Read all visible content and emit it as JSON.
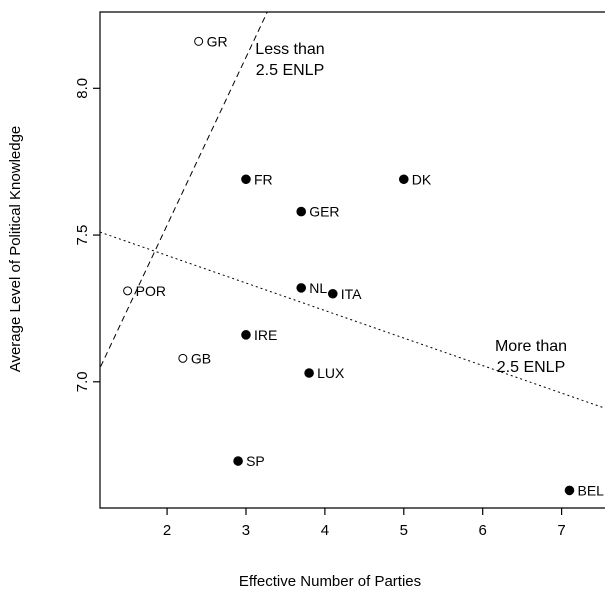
{
  "chart_data": {
    "type": "scatter",
    "title": "",
    "xlabel": "Effective Number of Parties",
    "ylabel": "Average Level of Political Knowledge",
    "xlim": [
      1.15,
      7.55
    ],
    "ylim": [
      6.57,
      8.26
    ],
    "x_ticks": [
      2,
      3,
      4,
      5,
      6,
      7
    ],
    "x_tick_labels": [
      "2",
      "3",
      "4",
      "5",
      "6",
      "7"
    ],
    "y_ticks": [
      7.0,
      7.5,
      8.0
    ],
    "y_tick_labels": [
      "7.0",
      "7.5",
      "8.0"
    ],
    "grid": false,
    "series": [
      {
        "marker": "open-circle",
        "points": [
          {
            "label": "GR",
            "x": 2.4,
            "y": 8.16
          },
          {
            "label": "POR",
            "x": 1.5,
            "y": 7.31
          },
          {
            "label": "GB",
            "x": 2.2,
            "y": 7.08
          }
        ]
      },
      {
        "marker": "filled-circle",
        "points": [
          {
            "label": "FR",
            "x": 3.0,
            "y": 7.69
          },
          {
            "label": "DK",
            "x": 5.0,
            "y": 7.69
          },
          {
            "label": "GER",
            "x": 3.7,
            "y": 7.58
          },
          {
            "label": "NL",
            "x": 3.7,
            "y": 7.32
          },
          {
            "label": "ITA",
            "x": 4.1,
            "y": 7.3
          },
          {
            "label": "IRE",
            "x": 3.0,
            "y": 7.16
          },
          {
            "label": "LUX",
            "x": 3.8,
            "y": 7.03
          },
          {
            "label": "SP",
            "x": 2.9,
            "y": 6.73
          },
          {
            "label": "BEL",
            "x": 7.1,
            "y": 6.63
          }
        ]
      }
    ],
    "lines": [
      {
        "style": "dashed",
        "from": [
          1.05,
          6.99
        ],
        "to": [
          3.27,
          8.26
        ]
      },
      {
        "style": "dotted",
        "from": [
          1.15,
          7.51
        ],
        "to": [
          7.55,
          6.91
        ]
      }
    ],
    "annotations": [
      {
        "lines": [
          "Less than",
          "2.5 ENLP"
        ]
      },
      {
        "lines": [
          "More than",
          "2.5 ENLP"
        ]
      }
    ]
  }
}
